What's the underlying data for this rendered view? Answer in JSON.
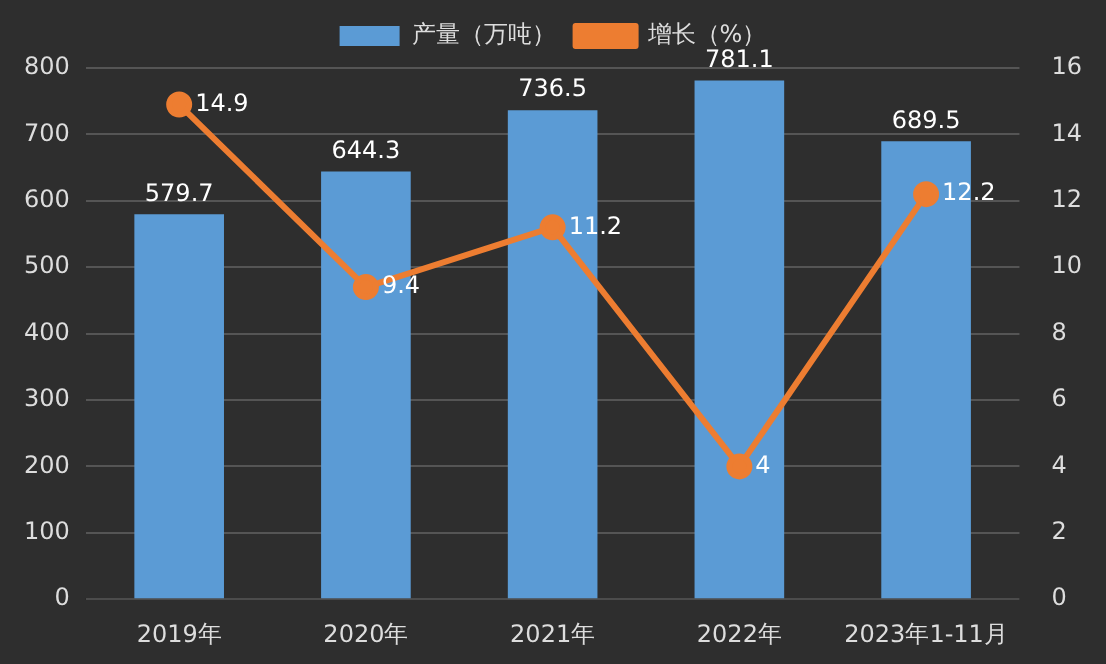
{
  "chart_data": {
    "type": "bar",
    "categories": [
      "2019年",
      "2020年",
      "2021年",
      "2022年",
      "2023年1-11月"
    ],
    "series": [
      {
        "name": "产量（万吨）",
        "color": "#5b9bd5",
        "values": [
          579.7,
          644.3,
          736.5,
          781.1,
          689.5
        ]
      },
      {
        "name": "增长（%）",
        "type": "line",
        "axis": "y2",
        "color": "#ed7d31",
        "values": [
          14.9,
          9.4,
          11.2,
          4,
          12.2
        ]
      }
    ],
    "ylim": [
      0,
      800
    ],
    "yticks": [
      0,
      100,
      200,
      300,
      400,
      500,
      600,
      700,
      800
    ],
    "y2lim": [
      0,
      16
    ],
    "y2ticks": [
      0,
      2,
      4,
      6,
      8,
      10,
      12,
      14,
      16
    ],
    "grid": "y",
    "legend": "top",
    "marker": "circle",
    "line_style": "solid",
    "data_labels": true
  }
}
